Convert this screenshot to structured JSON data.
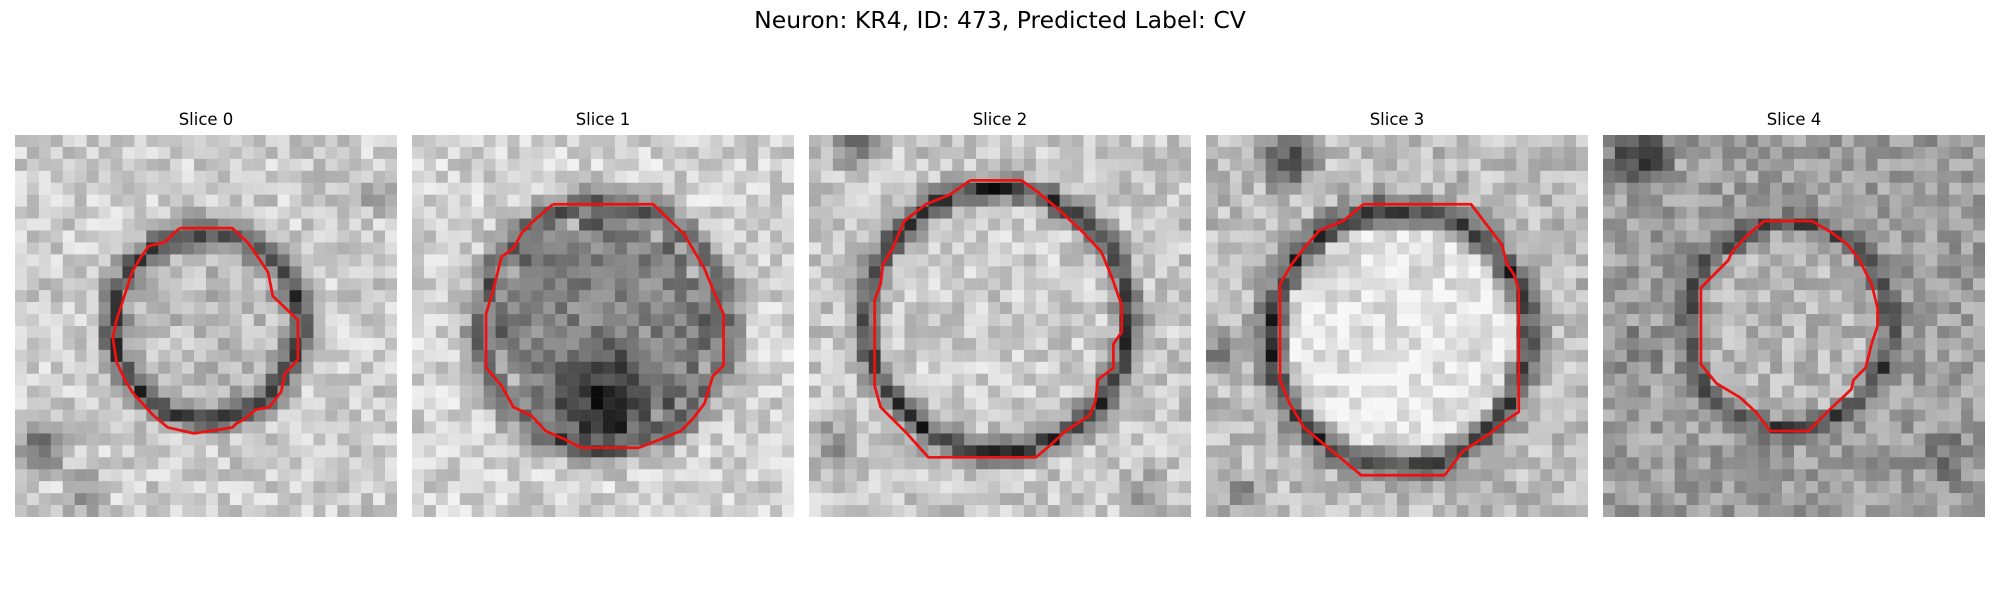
{
  "figure": {
    "title": "Neuron: KR4, ID: 473, Predicted Label: CV"
  },
  "panels": [
    {
      "title": "Slice 0"
    },
    {
      "title": "Slice 1"
    },
    {
      "title": "Slice 2"
    },
    {
      "title": "Slice 3"
    },
    {
      "title": "Slice 4"
    }
  ],
  "colors": {
    "contour": "#ee1111",
    "background": "#ffffff",
    "image_colormap": "grayscale"
  }
}
